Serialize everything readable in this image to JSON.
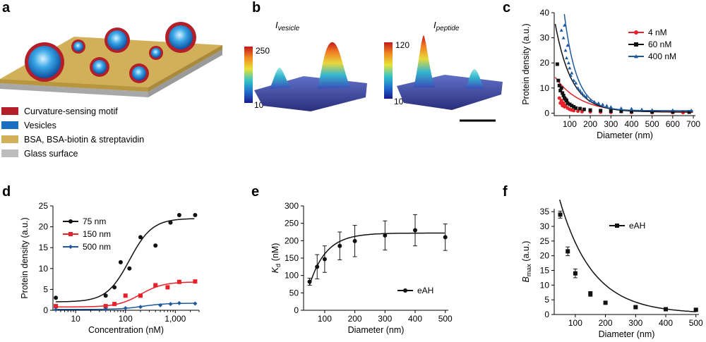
{
  "panels": {
    "a": "a",
    "b": "b",
    "c": "c",
    "d": "d",
    "e": "e",
    "f": "f"
  },
  "panel_a": {
    "legend": [
      {
        "label": "Curvature-sensing motif",
        "color": "#b41e28"
      },
      {
        "label": "Vesicles",
        "color": "#1a6fc0"
      },
      {
        "label": "BSA, BSA-biotin & streptavidin",
        "color": "#d2b05a"
      },
      {
        "label": "Glass surface",
        "color": "#bdbdbd"
      }
    ]
  },
  "panel_b": {
    "left": {
      "title_main": "I",
      "title_sub": "vesicle",
      "cbar_max": "250",
      "cbar_min": "10"
    },
    "right": {
      "title_main": "I",
      "title_sub": "peptide",
      "cbar_max": "120",
      "cbar_min": "10"
    }
  },
  "chart_data": [
    {
      "id": "c",
      "type": "scatter",
      "xlabel": "Diameter (nm)",
      "ylabel": "Protein density (a.u.)",
      "xlim": [
        25,
        710
      ],
      "ylim": [
        -1,
        40
      ],
      "xticks": [
        100,
        200,
        300,
        400,
        500,
        600,
        700
      ],
      "yticks": [
        0,
        10,
        20,
        30,
        40
      ],
      "series": [
        {
          "name": "4 nM",
          "color": "#e8202a",
          "marker": "circle",
          "amp": 14,
          "k": 120,
          "base": 0.3,
          "points": [
            [
              50,
              6
            ],
            [
              55,
              4
            ],
            [
              60,
              5
            ],
            [
              65,
              3
            ],
            [
              70,
              4
            ],
            [
              75,
              2.5
            ],
            [
              80,
              3
            ],
            [
              90,
              2
            ],
            [
              100,
              1.5
            ],
            [
              110,
              1.2
            ],
            [
              120,
              1
            ],
            [
              140,
              0.8
            ],
            [
              160,
              0.6
            ],
            [
              200,
              0.5
            ],
            [
              250,
              0.4
            ],
            [
              300,
              0.3
            ],
            [
              400,
              0.3
            ],
            [
              500,
              0.2
            ],
            [
              600,
              0.2
            ],
            [
              650,
              0.2
            ]
          ]
        },
        {
          "name": "60 nM",
          "color": "#111111",
          "marker": "square",
          "amp": 35,
          "k": 80,
          "base": 0.5,
          "points": [
            [
              40,
              19.5
            ],
            [
              45,
              13
            ],
            [
              50,
              11
            ],
            [
              55,
              9
            ],
            [
              60,
              10
            ],
            [
              65,
              8
            ],
            [
              70,
              7
            ],
            [
              75,
              6
            ],
            [
              80,
              5.5
            ],
            [
              85,
              5
            ],
            [
              90,
              4
            ],
            [
              100,
              3.5
            ],
            [
              110,
              3
            ],
            [
              120,
              2.5
            ],
            [
              130,
              2
            ],
            [
              150,
              1.8
            ],
            [
              170,
              1.5
            ],
            [
              200,
              1.2
            ],
            [
              250,
              1
            ],
            [
              300,
              0.8
            ],
            [
              350,
              0.7
            ],
            [
              400,
              0.6
            ],
            [
              500,
              0.5
            ],
            [
              600,
              0.5
            ],
            [
              680,
              0.4
            ]
          ]
        },
        {
          "name": "400 nM",
          "color": "#1f5aa0",
          "marker": "triangle",
          "amp": 80,
          "k": 60,
          "base": 1,
          "points": [
            [
              60,
              33
            ],
            [
              70,
              30
            ],
            [
              75,
              35
            ],
            [
              80,
              25
            ],
            [
              85,
              22
            ],
            [
              90,
              27
            ],
            [
              95,
              20
            ],
            [
              100,
              18
            ],
            [
              105,
              15
            ],
            [
              110,
              16
            ],
            [
              120,
              13
            ],
            [
              130,
              12
            ],
            [
              140,
              10
            ],
            [
              150,
              9
            ],
            [
              160,
              8
            ],
            [
              170,
              7
            ],
            [
              180,
              6.5
            ],
            [
              200,
              5
            ],
            [
              220,
              4.5
            ],
            [
              240,
              4
            ],
            [
              260,
              3.5
            ],
            [
              280,
              3
            ],
            [
              300,
              2.5
            ],
            [
              350,
              2
            ],
            [
              400,
              1.8
            ],
            [
              450,
              1.5
            ],
            [
              500,
              1.3
            ],
            [
              600,
              1.2
            ],
            [
              690,
              1.1
            ]
          ]
        }
      ]
    },
    {
      "id": "d",
      "type": "scatter",
      "xlabel": "Concentration (nM)",
      "ylabel": "Protein density (a.u.)",
      "xscale": "log",
      "xlim": [
        3.5,
        3000
      ],
      "ylim": [
        0,
        25
      ],
      "xticks": [
        10,
        100,
        1000
      ],
      "xtick_labels": [
        "10",
        "100",
        "1,000"
      ],
      "yticks": [
        0,
        5,
        10,
        15,
        20,
        25
      ],
      "series": [
        {
          "name": "75 nm",
          "color": "#111111",
          "marker": "circle",
          "curve": {
            "low": 2,
            "high": 22,
            "kd": 120,
            "n": 1.9
          },
          "points": [
            [
              4,
              3
            ],
            [
              40,
              3.5
            ],
            [
              60,
              5.5
            ],
            [
              80,
              11.5
            ],
            [
              120,
              10
            ],
            [
              200,
              17.5
            ],
            [
              400,
              15.5
            ],
            [
              800,
              21
            ],
            [
              1200,
              22.8
            ],
            [
              2500,
              22.8
            ]
          ]
        },
        {
          "name": "150 nm",
          "color": "#e8202a",
          "marker": "square",
          "curve": {
            "low": 0.8,
            "high": 6.8,
            "kd": 200,
            "n": 1.9
          },
          "points": [
            [
              4,
              1
            ],
            [
              40,
              1
            ],
            [
              60,
              1.5
            ],
            [
              100,
              3.5
            ],
            [
              200,
              3.5
            ],
            [
              400,
              6
            ],
            [
              700,
              5.5
            ],
            [
              1200,
              6.8
            ],
            [
              2500,
              6.9
            ]
          ]
        },
        {
          "name": "500 nm",
          "color": "#1f5aa0",
          "marker": "diamond",
          "curve": {
            "low": 0.2,
            "high": 1.7,
            "kd": 220,
            "n": 1.9
          },
          "points": [
            [
              4,
              0.2
            ],
            [
              40,
              0.3
            ],
            [
              100,
              0.5
            ],
            [
              200,
              0.8
            ],
            [
              500,
              1.2
            ],
            [
              800,
              1.5
            ],
            [
              1200,
              1.7
            ],
            [
              2500,
              1.6
            ]
          ]
        }
      ]
    },
    {
      "id": "e",
      "type": "scatter",
      "xlabel": "Diameter (nm)",
      "ylabel_main": "K",
      "ylabel_sub": "d",
      "ylabel_rest": " (nM)",
      "xlim": [
        30,
        510
      ],
      "ylim": [
        0,
        300
      ],
      "xticks": [
        100,
        200,
        300,
        400,
        500
      ],
      "yticks": [
        0,
        50,
        100,
        150,
        200,
        250,
        300
      ],
      "series": [
        {
          "name": "eAH",
          "color": "#111111",
          "marker": "circle",
          "curve": {
            "ymax": 222,
            "k": 55,
            "x0": 28
          },
          "points": [
            [
              50,
              82,
              10
            ],
            [
              75,
              125,
              35
            ],
            [
              100,
              147,
              38
            ],
            [
              150,
              185,
              40
            ],
            [
              200,
              199,
              45
            ],
            [
              300,
              215,
              42
            ],
            [
              400,
              230,
              45
            ],
            [
              500,
              210,
              38
            ]
          ]
        }
      ]
    },
    {
      "id": "f",
      "type": "scatter",
      "xlabel": "Diameter (nm)",
      "ylabel_main": "B",
      "ylabel_sub": "max",
      "ylabel_rest": " (a.u.)",
      "xlim": [
        30,
        510
      ],
      "ylim": [
        0,
        36
      ],
      "xticks": [
        100,
        200,
        300,
        400,
        500
      ],
      "yticks": [
        0,
        5,
        10,
        15,
        20,
        25,
        30,
        35
      ],
      "series": [
        {
          "name": "eAH",
          "color": "#111111",
          "marker": "square",
          "curve": {
            "amp": 60,
            "k": 110
          },
          "points": [
            [
              50,
              34,
              1.2
            ],
            [
              75,
              21.5,
              1.5
            ],
            [
              100,
              14,
              1.5
            ],
            [
              150,
              7,
              0.8
            ],
            [
              200,
              4,
              0.5
            ],
            [
              300,
              2.5,
              0.3
            ],
            [
              400,
              1.8,
              0.3
            ],
            [
              500,
              1.6,
              0.3
            ]
          ]
        }
      ]
    }
  ]
}
